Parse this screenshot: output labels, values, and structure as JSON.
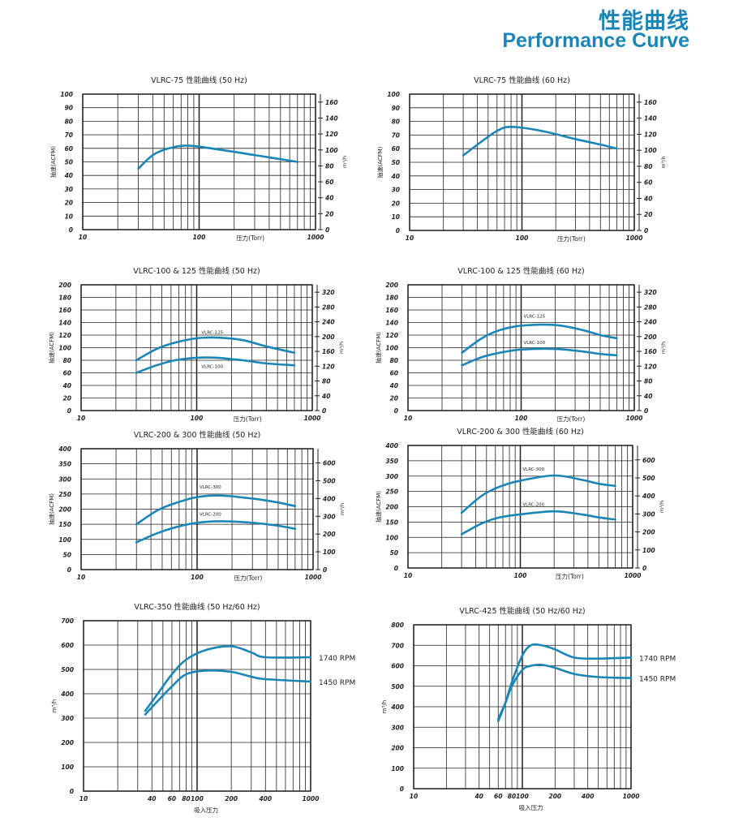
{
  "header": {
    "title_cn": "性能曲线",
    "title_en": "Performance Curve"
  },
  "style": {
    "curve_color": "#1a86b8",
    "grid_color": "#222222"
  },
  "chart_data": [
    {
      "type": "line",
      "title": "VLRC-75 性能曲线 (50 Hz)",
      "xlabel": "压力(Torr)",
      "ylabel": "抽速(ACFM)",
      "y2label": "m³/h",
      "xscale": "log",
      "xlim": [
        10,
        1000
      ],
      "xticks": [
        10,
        100,
        1000
      ],
      "ylim": [
        0,
        100
      ],
      "yticks": [
        0,
        10,
        20,
        30,
        40,
        50,
        60,
        70,
        80,
        90,
        100
      ],
      "y2lim": [
        0,
        170
      ],
      "y2ticks": [
        0,
        20,
        40,
        60,
        80,
        100,
        120,
        140,
        160
      ],
      "series": [
        {
          "name": "",
          "label": "",
          "label_at": [
            0,
            0
          ],
          "points": [
            [
              30,
              45
            ],
            [
              40,
              55
            ],
            [
              55,
              60
            ],
            [
              80,
              62
            ],
            [
              150,
              59
            ],
            [
              300,
              55
            ],
            [
              500,
              52
            ],
            [
              700,
              50
            ]
          ]
        }
      ]
    },
    {
      "type": "line",
      "title": "VLRC-75 性能曲线 (60 Hz)",
      "xlabel": "压力(Torr)",
      "ylabel": "抽速(ACFM)",
      "y2label": "m³/h",
      "xscale": "log",
      "xlim": [
        10,
        1000
      ],
      "xticks": [
        10,
        100,
        1000
      ],
      "ylim": [
        0,
        100
      ],
      "yticks": [
        0,
        10,
        20,
        30,
        40,
        50,
        60,
        70,
        80,
        90,
        100
      ],
      "y2lim": [
        0,
        170
      ],
      "y2ticks": [
        0,
        20,
        40,
        60,
        80,
        100,
        120,
        140,
        160
      ],
      "series": [
        {
          "name": "",
          "label": "",
          "label_at": [
            0,
            0
          ],
          "points": [
            [
              30,
              55
            ],
            [
              45,
              66
            ],
            [
              60,
              73
            ],
            [
              80,
              76
            ],
            [
              150,
              73
            ],
            [
              300,
              67
            ],
            [
              500,
              63
            ],
            [
              700,
              60
            ]
          ]
        }
      ]
    },
    {
      "type": "line",
      "title": "VLRC-100 & 125 性能曲线 (50 Hz)",
      "xlabel": "压力(Torr)",
      "ylabel": "抽速(ACFM)",
      "y2label": "m³/h",
      "xscale": "log",
      "xlim": [
        10,
        1000
      ],
      "xticks": [
        10,
        100,
        1000
      ],
      "ylim": [
        0,
        200
      ],
      "yticks": [
        0,
        20,
        40,
        60,
        80,
        100,
        120,
        140,
        160,
        180,
        200
      ],
      "y2lim": [
        0,
        340
      ],
      "y2ticks": [
        0,
        40,
        80,
        120,
        160,
        200,
        240,
        280,
        320
      ],
      "series": [
        {
          "name": "VLRC-125",
          "label": "VLRC-125",
          "label_at": [
            110,
            122
          ],
          "points": [
            [
              30,
              80
            ],
            [
              45,
              98
            ],
            [
              65,
              108
            ],
            [
              100,
              115
            ],
            [
              150,
              116
            ],
            [
              250,
              112
            ],
            [
              400,
              102
            ],
            [
              700,
              92
            ]
          ]
        },
        {
          "name": "VLRC-100",
          "label": "VLRC-100",
          "label_at": [
            110,
            68
          ],
          "points": [
            [
              30,
              60
            ],
            [
              45,
              72
            ],
            [
              65,
              80
            ],
            [
              100,
              84
            ],
            [
              150,
              84
            ],
            [
              250,
              80
            ],
            [
              400,
              75
            ],
            [
              700,
              72
            ]
          ]
        }
      ]
    },
    {
      "type": "line",
      "title": "VLRC-100 & 125 性能曲线 (60 Hz)",
      "xlabel": "压力(Torr)",
      "ylabel": "抽速(ACFM)",
      "y2label": "m³/h",
      "xscale": "log",
      "xlim": [
        10,
        1000
      ],
      "xticks": [
        10,
        100,
        1000
      ],
      "ylim": [
        0,
        200
      ],
      "yticks": [
        0,
        20,
        40,
        60,
        80,
        100,
        120,
        140,
        160,
        180,
        200
      ],
      "y2lim": [
        0,
        340
      ],
      "y2ticks": [
        0,
        40,
        80,
        120,
        160,
        200,
        240,
        280,
        320
      ],
      "series": [
        {
          "name": "VLRC-125",
          "label": "VLRC-125",
          "label_at": [
            105,
            148
          ],
          "points": [
            [
              30,
              92
            ],
            [
              45,
              115
            ],
            [
              65,
              128
            ],
            [
              100,
              135
            ],
            [
              200,
              136
            ],
            [
              350,
              128
            ],
            [
              500,
              120
            ],
            [
              700,
              115
            ]
          ]
        },
        {
          "name": "VLRC-100",
          "label": "VLRC-100",
          "label_at": [
            105,
            106
          ],
          "points": [
            [
              30,
              72
            ],
            [
              45,
              85
            ],
            [
              65,
              92
            ],
            [
              100,
              97
            ],
            [
              200,
              98
            ],
            [
              350,
              94
            ],
            [
              500,
              90
            ],
            [
              700,
              88
            ]
          ]
        }
      ]
    },
    {
      "type": "line",
      "title": "VLRC-200 & 300 性能曲线 (50 Hz)",
      "xlabel": "压力(Torr)",
      "ylabel": "抽速(ACFM)",
      "y2label": "m³/h",
      "xscale": "log",
      "xlim": [
        10,
        1000
      ],
      "xticks": [
        10,
        100,
        1000
      ],
      "ylim": [
        0,
        400
      ],
      "yticks": [
        0,
        50,
        100,
        150,
        200,
        250,
        300,
        350,
        400
      ],
      "y2lim": [
        0,
        680
      ],
      "y2ticks": [
        0,
        100,
        200,
        300,
        400,
        500,
        600
      ],
      "series": [
        {
          "name": "VLRC-300",
          "label": "VLRC-300",
          "label_at": [
            105,
            268
          ],
          "points": [
            [
              30,
              150
            ],
            [
              45,
              195
            ],
            [
              65,
              220
            ],
            [
              100,
              240
            ],
            [
              160,
              245
            ],
            [
              300,
              235
            ],
            [
              500,
              222
            ],
            [
              700,
              210
            ]
          ]
        },
        {
          "name": "VLRC-200",
          "label": "VLRC-200",
          "label_at": [
            105,
            178
          ],
          "points": [
            [
              30,
              90
            ],
            [
              45,
              120
            ],
            [
              65,
              140
            ],
            [
              100,
              155
            ],
            [
              160,
              160
            ],
            [
              300,
              155
            ],
            [
              500,
              145
            ],
            [
              700,
              135
            ]
          ]
        }
      ]
    },
    {
      "type": "line",
      "title": "VLRC-200 & 300 性能曲线 (60 Hz)",
      "xlabel": "压力(Torr)",
      "ylabel": "抽速(ACFM)",
      "y2label": "m³/h",
      "xscale": "log",
      "xlim": [
        10,
        1000
      ],
      "xticks": [
        10,
        100,
        1000
      ],
      "ylim": [
        0,
        400
      ],
      "yticks": [
        0,
        50,
        100,
        150,
        200,
        250,
        300,
        350,
        400
      ],
      "y2lim": [
        0,
        680
      ],
      "y2ticks": [
        0,
        100,
        200,
        300,
        400,
        500,
        600
      ],
      "series": [
        {
          "name": "VLRC-300",
          "label": "VLRC-300",
          "label_at": [
            105,
            318
          ],
          "points": [
            [
              30,
              180
            ],
            [
              45,
              235
            ],
            [
              65,
              265
            ],
            [
              100,
              285
            ],
            [
              200,
              302
            ],
            [
              350,
              288
            ],
            [
              500,
              275
            ],
            [
              700,
              268
            ]
          ]
        },
        {
          "name": "VLRC-200",
          "label": "VLRC-200",
          "label_at": [
            105,
            202
          ],
          "points": [
            [
              30,
              110
            ],
            [
              45,
              145
            ],
            [
              65,
              165
            ],
            [
              100,
              175
            ],
            [
              200,
              185
            ],
            [
              350,
              175
            ],
            [
              500,
              165
            ],
            [
              700,
              158
            ]
          ]
        }
      ]
    },
    {
      "type": "line",
      "title": "VLRC-350 性能曲线 (50 Hz/60 Hz)",
      "xlabel": "吸入压力",
      "ylabel": "m³/h",
      "y2label": "",
      "xscale": "log",
      "xlim": [
        10,
        1000
      ],
      "xticks": [
        10,
        40,
        60,
        80,
        100,
        200,
        400,
        1000
      ],
      "ylim": [
        0,
        700
      ],
      "yticks": [
        0,
        100,
        200,
        300,
        400,
        500,
        600,
        700
      ],
      "y2lim": null,
      "y2ticks": [],
      "series": [
        {
          "name": "1740 RPM",
          "label": "1740 RPM",
          "label_at": null,
          "points": [
            [
              35,
              330
            ],
            [
              45,
              400
            ],
            [
              60,
              480
            ],
            [
              80,
              540
            ],
            [
              120,
              580
            ],
            [
              200,
              595
            ],
            [
              300,
              570
            ],
            [
              400,
              550
            ],
            [
              1000,
              550
            ]
          ]
        },
        {
          "name": "1450 RPM",
          "label": "1450 RPM",
          "label_at": null,
          "points": [
            [
              35,
              315
            ],
            [
              45,
              370
            ],
            [
              60,
              430
            ],
            [
              80,
              480
            ],
            [
              120,
              495
            ],
            [
              200,
              490
            ],
            [
              300,
              470
            ],
            [
              400,
              460
            ],
            [
              1000,
              450
            ]
          ]
        }
      ]
    },
    {
      "type": "line",
      "title": "VLRC-425 性能曲线 (50 Hz/60 Hz)",
      "xlabel": "吸入压力",
      "ylabel": "m³/h",
      "y2label": "",
      "xscale": "log",
      "xlim": [
        10,
        1000
      ],
      "xticks": [
        10,
        40,
        60,
        80,
        100,
        200,
        400,
        1000
      ],
      "ylim": [
        0,
        800
      ],
      "yticks": [
        0,
        100,
        200,
        300,
        400,
        500,
        600,
        700,
        800
      ],
      "y2lim": null,
      "y2ticks": [],
      "series": [
        {
          "name": "1740 RPM",
          "label": "1740 RPM",
          "label_at": null,
          "points": [
            [
              60,
              330
            ],
            [
              70,
              420
            ],
            [
              80,
              520
            ],
            [
              100,
              650
            ],
            [
              120,
              700
            ],
            [
              150,
              700
            ],
            [
              200,
              680
            ],
            [
              300,
              640
            ],
            [
              500,
              635
            ],
            [
              1000,
              640
            ]
          ]
        },
        {
          "name": "1450 RPM",
          "label": "1450 RPM",
          "label_at": null,
          "points": [
            [
              60,
              340
            ],
            [
              70,
              420
            ],
            [
              80,
              500
            ],
            [
              100,
              580
            ],
            [
              120,
              600
            ],
            [
              150,
              605
            ],
            [
              200,
              590
            ],
            [
              300,
              560
            ],
            [
              500,
              545
            ],
            [
              1000,
              540
            ]
          ]
        }
      ]
    }
  ]
}
